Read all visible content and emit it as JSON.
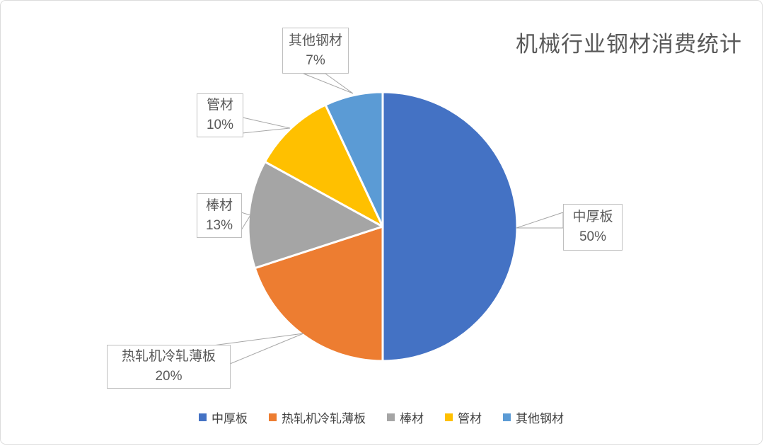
{
  "chart_data": {
    "type": "pie",
    "title": "机械行业钢材消费统计",
    "unit": "%",
    "start_angle_deg": 0,
    "direction": "clockwise",
    "legend_position": "bottom",
    "background_color": "#ffffff",
    "title_color": "#595959",
    "slices": [
      {
        "label": "中厚板",
        "value": 50,
        "pct_label": "50%",
        "color": "#4472C4"
      },
      {
        "label": "热轧机冷轧薄板",
        "value": 20,
        "pct_label": "20%",
        "color": "#ED7D31"
      },
      {
        "label": "棒材",
        "value": 13,
        "pct_label": "13%",
        "color": "#A5A5A5"
      },
      {
        "label": "管材",
        "value": 10,
        "pct_label": "10%",
        "color": "#FFC000"
      },
      {
        "label": "其他钢材",
        "value": 7,
        "pct_label": "7%",
        "color": "#5B9BD5"
      }
    ]
  }
}
